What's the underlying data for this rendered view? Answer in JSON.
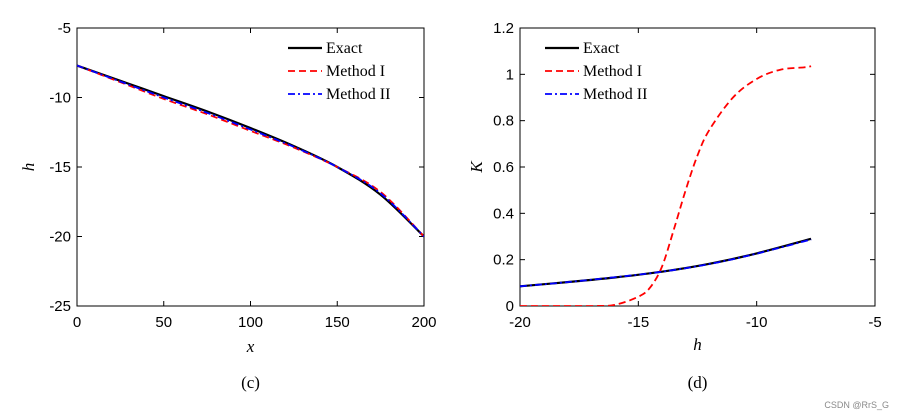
{
  "chart_data": [
    {
      "type": "line",
      "caption": "(c)",
      "xlabel": "x",
      "ylabel": "h",
      "xlim": [
        0,
        200
      ],
      "ylim": [
        -25,
        -5
      ],
      "xticks": [
        0,
        50,
        100,
        150,
        200
      ],
      "yticks": [
        -25,
        -20,
        -15,
        -10,
        -5
      ],
      "xtick_labels": [
        "0",
        "50",
        "100",
        "150",
        "200"
      ],
      "ytick_labels": [
        "-25",
        "-20",
        "-15",
        "-10",
        "-5"
      ],
      "legend_position": "top-right",
      "series": [
        {
          "name": "Exact",
          "color": "#000000",
          "style": "solid",
          "x": [
            0,
            25,
            50,
            75,
            100,
            125,
            150,
            175,
            200
          ],
          "y": [
            -7.7,
            -8.8,
            -9.9,
            -11.0,
            -12.2,
            -13.5,
            -15.0,
            -17.0,
            -20.0
          ]
        },
        {
          "name": "Method I",
          "color": "#ff0000",
          "style": "dashed",
          "x": [
            0,
            25,
            50,
            75,
            100,
            125,
            150,
            175,
            200
          ],
          "y": [
            -7.7,
            -8.9,
            -10.1,
            -11.2,
            -12.4,
            -13.6,
            -15.0,
            -16.8,
            -20.0
          ]
        },
        {
          "name": "Method II",
          "color": "#0000ff",
          "style": "dashdot",
          "x": [
            0,
            25,
            50,
            75,
            100,
            125,
            150,
            175,
            200
          ],
          "y": [
            -7.7,
            -8.85,
            -10.0,
            -11.1,
            -12.3,
            -13.55,
            -15.0,
            -16.9,
            -20.0
          ]
        }
      ]
    },
    {
      "type": "line",
      "caption": "(d)",
      "xlabel": "h",
      "ylabel": "K",
      "xlim": [
        -20,
        -5
      ],
      "ylim": [
        0,
        1.2
      ],
      "xticks": [
        -20,
        -15,
        -10,
        -5
      ],
      "yticks": [
        0,
        0.2,
        0.4,
        0.6,
        0.8,
        1,
        1.2
      ],
      "xtick_labels": [
        "-20",
        "-15",
        "-10",
        "-5"
      ],
      "ytick_labels": [
        "0",
        "0.2",
        "0.4",
        "0.6",
        "0.8",
        "1",
        "1.2"
      ],
      "legend_position": "top-left",
      "series": [
        {
          "name": "Exact",
          "color": "#000000",
          "style": "solid",
          "x": [
            -20,
            -18,
            -16,
            -14,
            -12,
            -10,
            -7.7
          ],
          "y": [
            0.085,
            0.103,
            0.123,
            0.148,
            0.182,
            0.227,
            0.29
          ]
        },
        {
          "name": "Method I",
          "color": "#ff0000",
          "style": "dashed",
          "x": [
            -20,
            -17,
            -16,
            -15,
            -14.5,
            -14,
            -13.5,
            -13,
            -12.5,
            -12,
            -11,
            -10,
            -9,
            -8,
            -7.7
          ],
          "y": [
            0.0,
            0.0,
            0.005,
            0.04,
            0.08,
            0.17,
            0.33,
            0.5,
            0.65,
            0.76,
            0.9,
            0.98,
            1.02,
            1.03,
            1.035
          ]
        },
        {
          "name": "Method II",
          "color": "#0000ff",
          "style": "dashdot",
          "x": [
            -20,
            -18,
            -16,
            -14,
            -12,
            -10,
            -7.7
          ],
          "y": [
            0.085,
            0.103,
            0.124,
            0.148,
            0.181,
            0.226,
            0.287
          ]
        }
      ]
    }
  ],
  "watermark": "CSDN @RrS_G"
}
